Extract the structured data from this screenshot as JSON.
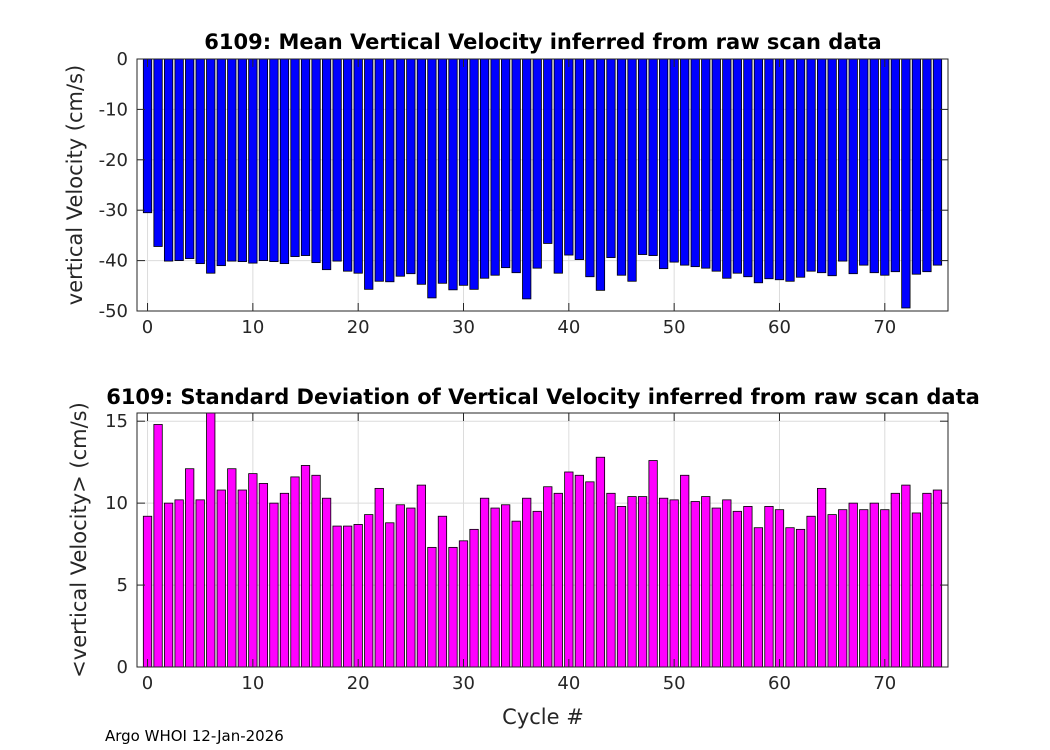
{
  "footer_text": "Argo WHOI 12-Jan-2026",
  "chart_data": [
    {
      "type": "bar",
      "title": "6109: Mean Vertical Velocity inferred from raw scan data",
      "xlabel": "",
      "ylabel": "vertical Velocity (cm/s)",
      "xlim": [
        -1,
        76
      ],
      "ylim": [
        -50,
        0
      ],
      "xticks": [
        0,
        10,
        20,
        30,
        40,
        50,
        60,
        70
      ],
      "xtick_labels": [
        "0",
        "10",
        "20",
        "30",
        "40",
        "50",
        "60",
        "70"
      ],
      "yticks": [
        -50,
        -40,
        -30,
        -20,
        -10,
        0
      ],
      "ytick_labels": [
        "-50",
        "-40",
        "-30",
        "-20",
        "-10",
        "0"
      ],
      "grid": true,
      "color": "#0000ff",
      "x": [
        0,
        1,
        2,
        3,
        4,
        5,
        6,
        7,
        8,
        9,
        10,
        11,
        12,
        13,
        14,
        15,
        16,
        17,
        18,
        19,
        20,
        21,
        22,
        23,
        24,
        25,
        26,
        27,
        28,
        29,
        30,
        31,
        32,
        33,
        34,
        35,
        36,
        37,
        38,
        39,
        40,
        41,
        42,
        43,
        44,
        45,
        46,
        47,
        48,
        49,
        50,
        51,
        52,
        53,
        54,
        55,
        56,
        57,
        58,
        59,
        60,
        61,
        62,
        63,
        64,
        65,
        66,
        67,
        68,
        69,
        70,
        71,
        72,
        73,
        74,
        75
      ],
      "values": [
        -30.5,
        -37.2,
        -40.1,
        -40.0,
        -39.6,
        -40.6,
        -42.5,
        -41.0,
        -40.1,
        -40.2,
        -40.5,
        -40.0,
        -40.2,
        -40.6,
        -39.2,
        -39.0,
        -40.4,
        -41.8,
        -40.1,
        -42.1,
        -42.5,
        -45.7,
        -44.1,
        -44.2,
        -43.1,
        -42.6,
        -44.7,
        -47.4,
        -44.5,
        -45.8,
        -44.9,
        -45.7,
        -43.5,
        -42.9,
        -41.4,
        -42.4,
        -47.6,
        -41.5,
        -36.6,
        -42.5,
        -38.9,
        -39.8,
        -43.2,
        -45.9,
        -39.4,
        -42.9,
        -44.1,
        -38.8,
        -39.0,
        -41.6,
        -40.3,
        -40.9,
        -41.2,
        -41.5,
        -42.1,
        -43.5,
        -42.5,
        -43.2,
        -44.4,
        -43.6,
        -43.8,
        -44.1,
        -43.3,
        -42.1,
        -42.4,
        -43.0,
        -40.1,
        -42.6,
        -40.9,
        -42.4,
        -42.9,
        -42.2,
        -49.4,
        -42.7,
        -42.2,
        -40.9
      ]
    },
    {
      "type": "bar",
      "title": "6109: Standard Deviation of Vertical Velocity inferred from raw scan data",
      "xlabel": "Cycle #",
      "ylabel": "<vertical Velocity> (cm/s)",
      "xlim": [
        -1,
        76
      ],
      "ylim": [
        0,
        15.5
      ],
      "xticks": [
        0,
        10,
        20,
        30,
        40,
        50,
        60,
        70
      ],
      "xtick_labels": [
        "0",
        "10",
        "20",
        "30",
        "40",
        "50",
        "60",
        "70"
      ],
      "yticks": [
        0,
        5,
        10,
        15
      ],
      "ytick_labels": [
        "0",
        "5",
        "10",
        "15"
      ],
      "grid": true,
      "color": "#ff00ff",
      "x": [
        0,
        1,
        2,
        3,
        4,
        5,
        6,
        7,
        8,
        9,
        10,
        11,
        12,
        13,
        14,
        15,
        16,
        17,
        18,
        19,
        20,
        21,
        22,
        23,
        24,
        25,
        26,
        27,
        28,
        29,
        30,
        31,
        32,
        33,
        34,
        35,
        36,
        37,
        38,
        39,
        40,
        41,
        42,
        43,
        44,
        45,
        46,
        47,
        48,
        49,
        50,
        51,
        52,
        53,
        54,
        55,
        56,
        57,
        58,
        59,
        60,
        61,
        62,
        63,
        64,
        65,
        66,
        67,
        68,
        69,
        70,
        71,
        72,
        73,
        74,
        75
      ],
      "values": [
        9.2,
        14.8,
        10.0,
        10.2,
        12.1,
        10.2,
        15.5,
        10.8,
        12.1,
        10.8,
        11.8,
        11.2,
        10.0,
        10.6,
        11.6,
        12.3,
        11.7,
        10.3,
        8.6,
        8.6,
        8.7,
        9.3,
        10.9,
        8.8,
        9.9,
        9.7,
        11.1,
        7.3,
        9.2,
        7.3,
        7.7,
        8.4,
        10.3,
        9.7,
        9.9,
        8.9,
        10.3,
        9.5,
        11.0,
        10.6,
        11.9,
        11.7,
        11.3,
        12.8,
        10.6,
        9.8,
        10.4,
        10.4,
        12.6,
        10.3,
        10.2,
        11.7,
        10.1,
        10.4,
        9.7,
        10.2,
        9.5,
        9.8,
        8.5,
        9.8,
        9.6,
        8.5,
        8.4,
        9.2,
        10.9,
        9.3,
        9.6,
        10.0,
        9.6,
        10.0,
        9.6,
        10.6,
        11.1,
        9.4,
        10.6,
        10.8
      ]
    }
  ]
}
